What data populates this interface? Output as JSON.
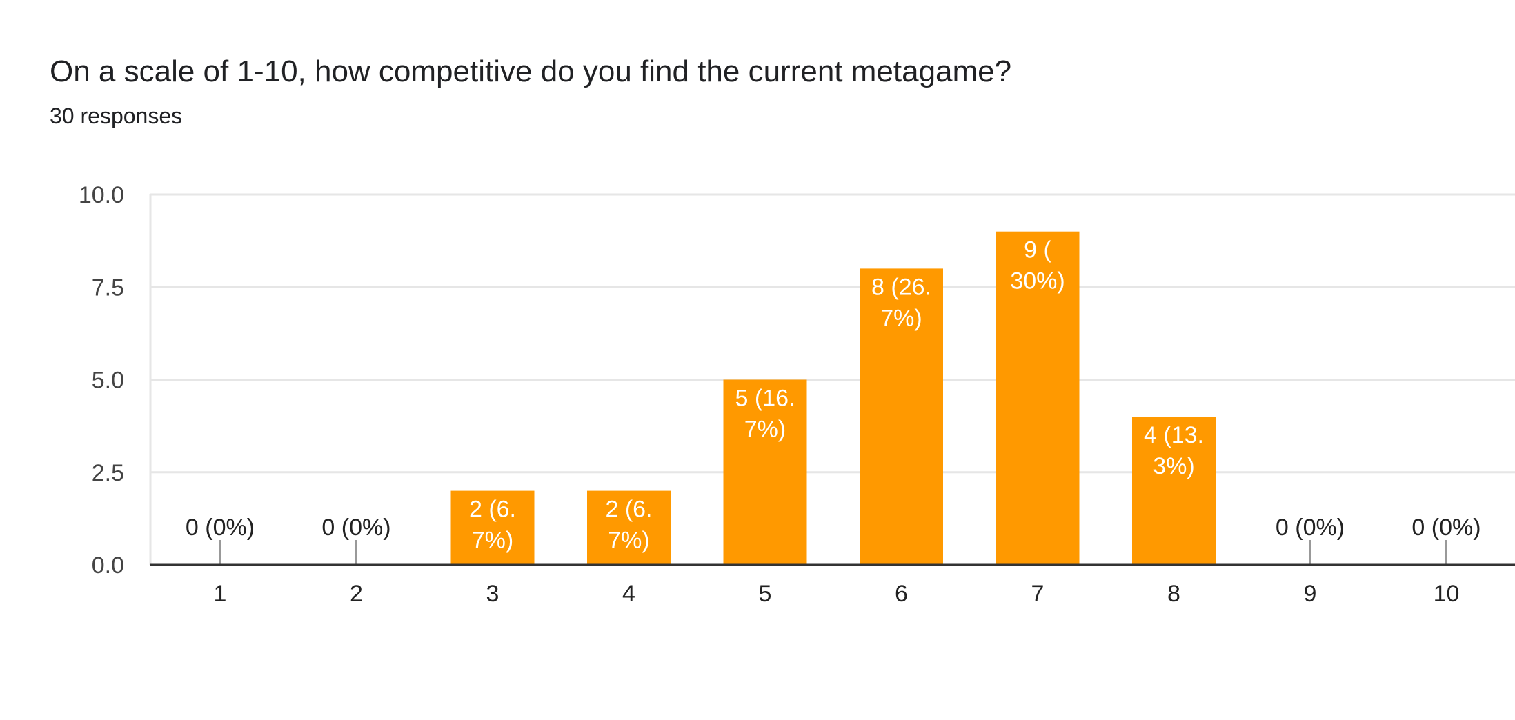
{
  "header": {
    "title": "On a scale of 1-10, how competitive do you find the current metagame?",
    "subtitle": "30 responses"
  },
  "chart_data": {
    "type": "bar",
    "title": "",
    "xlabel": "",
    "ylabel": "",
    "categories": [
      "1",
      "2",
      "3",
      "4",
      "5",
      "6",
      "7",
      "8",
      "9",
      "10"
    ],
    "values": [
      0,
      0,
      2,
      2,
      5,
      8,
      9,
      4,
      0,
      0
    ],
    "data_labels": [
      [
        "0 (0%)"
      ],
      [
        "0 (0%)"
      ],
      [
        "2 (6.",
        "7%)"
      ],
      [
        "2 (6.",
        "7%)"
      ],
      [
        "5 (16.",
        "7%)"
      ],
      [
        "8 (26.",
        "7%)"
      ],
      [
        "9 (",
        "30%)"
      ],
      [
        "4 (13.",
        "3%)"
      ],
      [
        "0 (0%)"
      ],
      [
        "0 (0%)"
      ]
    ],
    "y_ticks": [
      "0.0",
      "2.5",
      "5.0",
      "7.5",
      "10.0"
    ],
    "ylim": [
      0,
      10
    ],
    "grid": true,
    "legend": "none",
    "colors": {
      "bar": "#ff9900",
      "grid": "#e6e6e6",
      "baseline": "#333333",
      "zero_marker": "#999999"
    }
  }
}
